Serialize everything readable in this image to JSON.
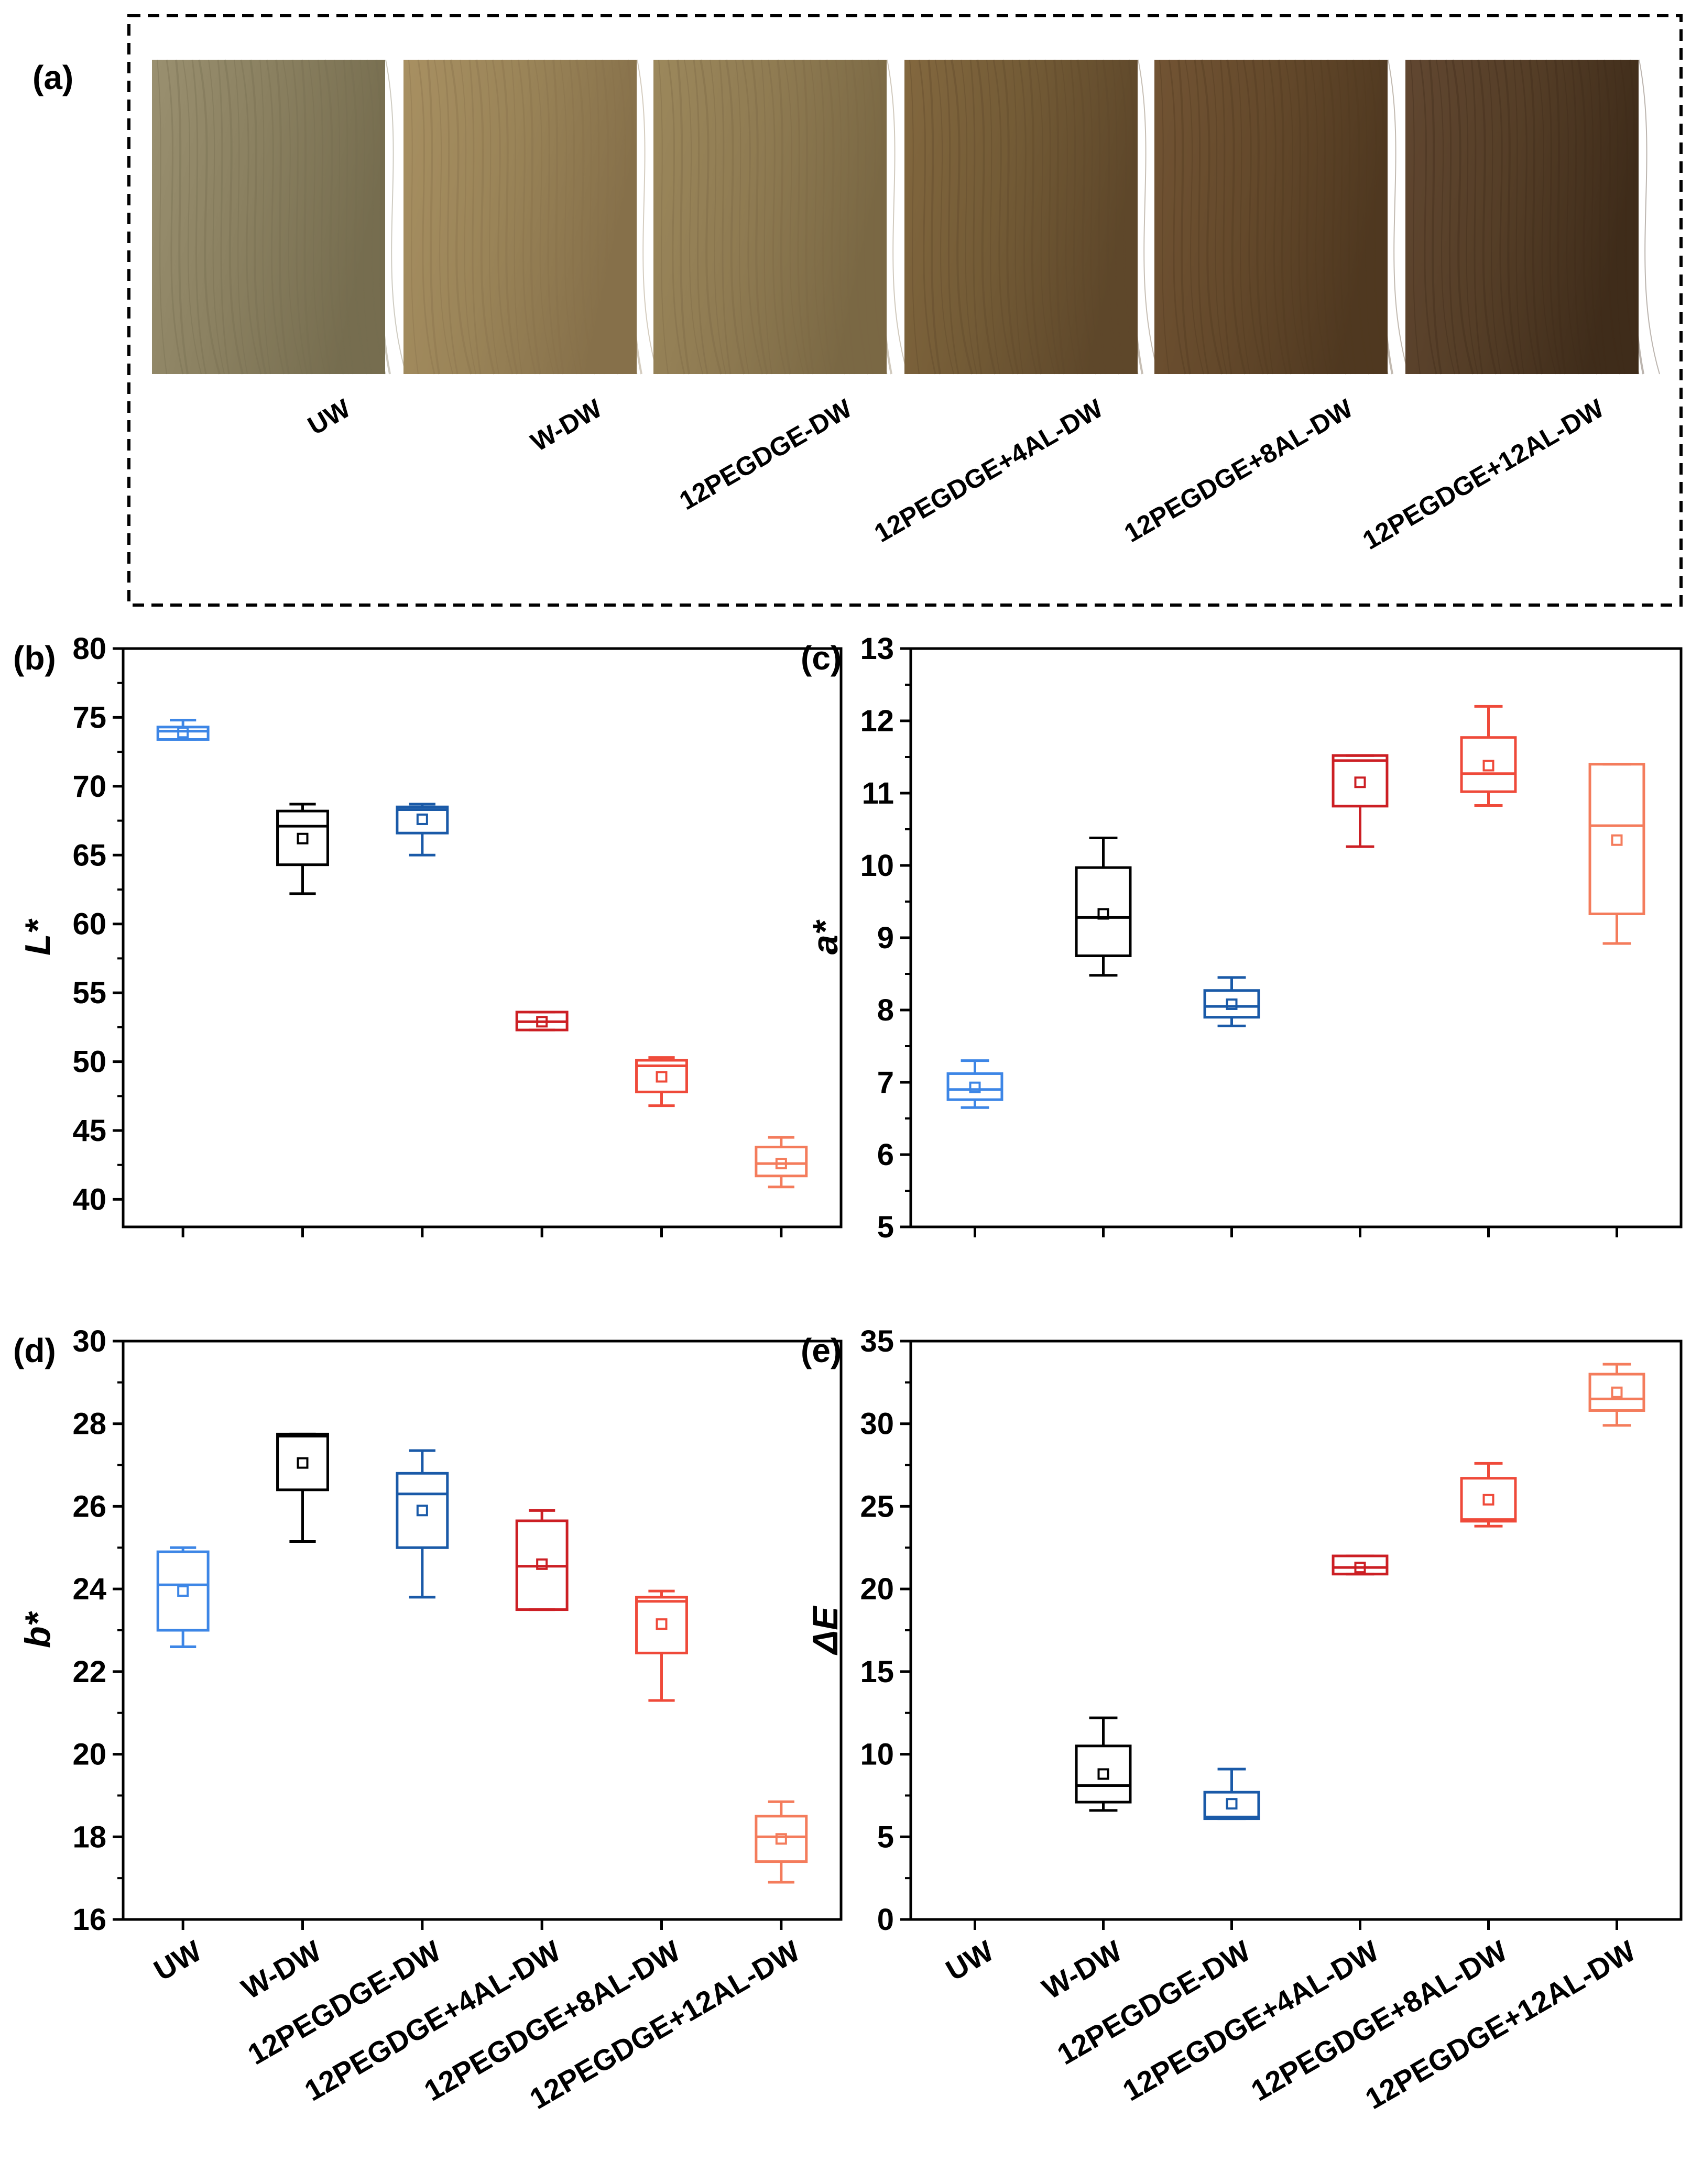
{
  "panel_a": {
    "label": "(a)",
    "samples": [
      {
        "name": "UW",
        "base": "#8a8060",
        "grain": "#766d4f",
        "shade": "#9a9070"
      },
      {
        "name": "W-DW",
        "base": "#9a8458",
        "grain": "#86704a",
        "shade": "#a89062"
      },
      {
        "name": "12PEGDGE-DW",
        "base": "#8f7b52",
        "grain": "#7a6844",
        "shade": "#9c885c"
      },
      {
        "name": "12PEGDGE+4AL-DW",
        "base": "#735b36",
        "grain": "#5e472a",
        "shade": "#83683f"
      },
      {
        "name": "12PEGDGE+8AL-DW",
        "base": "#64492b",
        "grain": "#4f3820",
        "shade": "#725434"
      },
      {
        "name": "12PEGDGE+12AL-DW",
        "base": "#553e27",
        "grain": "#3f2c1a",
        "shade": "#614731"
      }
    ]
  },
  "chart_data": [
    {
      "panel": "(b)",
      "type": "box",
      "ylabel": "L*",
      "ylim": [
        38,
        80
      ],
      "yticks": [
        40,
        45,
        50,
        55,
        60,
        65,
        70,
        75,
        80
      ],
      "categories": [
        "UW",
        "W-DW",
        "12PEGDGE-DW",
        "12PEGDGE+4AL-DW",
        "12PEGDGE+8AL-DW",
        "12PEGDGE+12AL-DW"
      ],
      "show_category_labels": false,
      "boxes": [
        {
          "min": 73.4,
          "q1": 73.4,
          "median": 74.0,
          "q3": 74.3,
          "max": 74.8,
          "mean": 73.9
        },
        {
          "min": 62.2,
          "q1": 64.3,
          "median": 67.1,
          "q3": 68.2,
          "max": 68.7,
          "mean": 66.2
        },
        {
          "min": 65.0,
          "q1": 66.6,
          "median": 68.3,
          "q3": 68.5,
          "max": 68.7,
          "mean": 67.6
        },
        {
          "min": 52.3,
          "q1": 52.3,
          "median": 52.9,
          "q3": 53.6,
          "max": 53.6,
          "mean": 52.9
        },
        {
          "min": 46.8,
          "q1": 47.8,
          "median": 49.7,
          "q3": 50.1,
          "max": 50.3,
          "mean": 48.9
        },
        {
          "min": 40.9,
          "q1": 41.7,
          "median": 42.6,
          "q3": 43.8,
          "max": 44.5,
          "mean": 42.6
        }
      ]
    },
    {
      "panel": "(c)",
      "type": "box",
      "ylabel": "a*",
      "ylim": [
        5,
        13
      ],
      "yticks": [
        5,
        6,
        7,
        8,
        9,
        10,
        11,
        12,
        13
      ],
      "categories": [
        "UW",
        "W-DW",
        "12PEGDGE-DW",
        "12PEGDGE+4AL-DW",
        "12PEGDGE+8AL-DW",
        "12PEGDGE+12AL-DW"
      ],
      "show_category_labels": false,
      "boxes": [
        {
          "min": 6.65,
          "q1": 6.76,
          "median": 6.9,
          "q3": 7.12,
          "max": 7.3,
          "mean": 6.93
        },
        {
          "min": 8.48,
          "q1": 8.75,
          "median": 9.28,
          "q3": 9.97,
          "max": 10.38,
          "mean": 9.33
        },
        {
          "min": 7.78,
          "q1": 7.9,
          "median": 8.05,
          "q3": 8.27,
          "max": 8.45,
          "mean": 8.08
        },
        {
          "min": 10.26,
          "q1": 10.82,
          "median": 11.45,
          "q3": 11.52,
          "max": 11.52,
          "mean": 11.15
        },
        {
          "min": 10.83,
          "q1": 11.02,
          "median": 11.27,
          "q3": 11.77,
          "max": 12.2,
          "mean": 11.38
        },
        {
          "min": 8.92,
          "q1": 9.33,
          "median": 10.55,
          "q3": 11.4,
          "max": 11.4,
          "mean": 10.35
        }
      ]
    },
    {
      "panel": "(d)",
      "type": "box",
      "ylabel": "b*",
      "ylim": [
        16,
        30
      ],
      "yticks": [
        16,
        18,
        20,
        22,
        24,
        26,
        28,
        30
      ],
      "categories": [
        "UW",
        "W-DW",
        "12PEGDGE-DW",
        "12PEGDGE+4AL-DW",
        "12PEGDGE+8AL-DW",
        "12PEGDGE+12AL-DW"
      ],
      "show_category_labels": true,
      "boxes": [
        {
          "min": 22.6,
          "q1": 23.0,
          "median": 24.1,
          "q3": 24.9,
          "max": 25.0,
          "mean": 23.95
        },
        {
          "min": 25.15,
          "q1": 26.4,
          "median": 27.7,
          "q3": 27.75,
          "max": 27.75,
          "mean": 27.05
        },
        {
          "min": 23.8,
          "q1": 25.0,
          "median": 26.3,
          "q3": 26.8,
          "max": 27.35,
          "mean": 25.9
        },
        {
          "min": 23.5,
          "q1": 23.5,
          "median": 24.55,
          "q3": 25.65,
          "max": 25.9,
          "mean": 24.6
        },
        {
          "min": 21.3,
          "q1": 22.45,
          "median": 23.7,
          "q3": 23.8,
          "max": 23.95,
          "mean": 23.15
        },
        {
          "min": 16.9,
          "q1": 17.4,
          "median": 18.0,
          "q3": 18.5,
          "max": 18.85,
          "mean": 17.95
        }
      ]
    },
    {
      "panel": "(e)",
      "type": "box",
      "ylabel": "ΔE",
      "ylim": [
        0,
        35
      ],
      "yticks": [
        0,
        5,
        10,
        15,
        20,
        25,
        30,
        35
      ],
      "categories": [
        "UW",
        "W-DW",
        "12PEGDGE-DW",
        "12PEGDGE+4AL-DW",
        "12PEGDGE+8AL-DW",
        "12PEGDGE+12AL-DW"
      ],
      "show_category_labels": true,
      "boxes": [
        null,
        {
          "min": 6.6,
          "q1": 7.1,
          "median": 8.1,
          "q3": 10.5,
          "max": 12.2,
          "mean": 8.8
        },
        {
          "min": 6.1,
          "q1": 6.1,
          "median": 6.2,
          "q3": 7.7,
          "max": 9.1,
          "mean": 7.0
        },
        {
          "min": 20.9,
          "q1": 20.9,
          "median": 21.3,
          "q3": 22.0,
          "max": 22.0,
          "mean": 21.3
        },
        {
          "min": 23.8,
          "q1": 24.1,
          "median": 24.2,
          "q3": 26.7,
          "max": 27.6,
          "mean": 25.4
        },
        {
          "min": 29.9,
          "q1": 30.8,
          "median": 31.5,
          "q3": 33.0,
          "max": 33.6,
          "mean": 31.9
        }
      ]
    }
  ],
  "series_colors": [
    "#3d86e6",
    "#000000",
    "#1a5aa8",
    "#cc1f24",
    "#ef4a3a",
    "#f47c5c"
  ]
}
